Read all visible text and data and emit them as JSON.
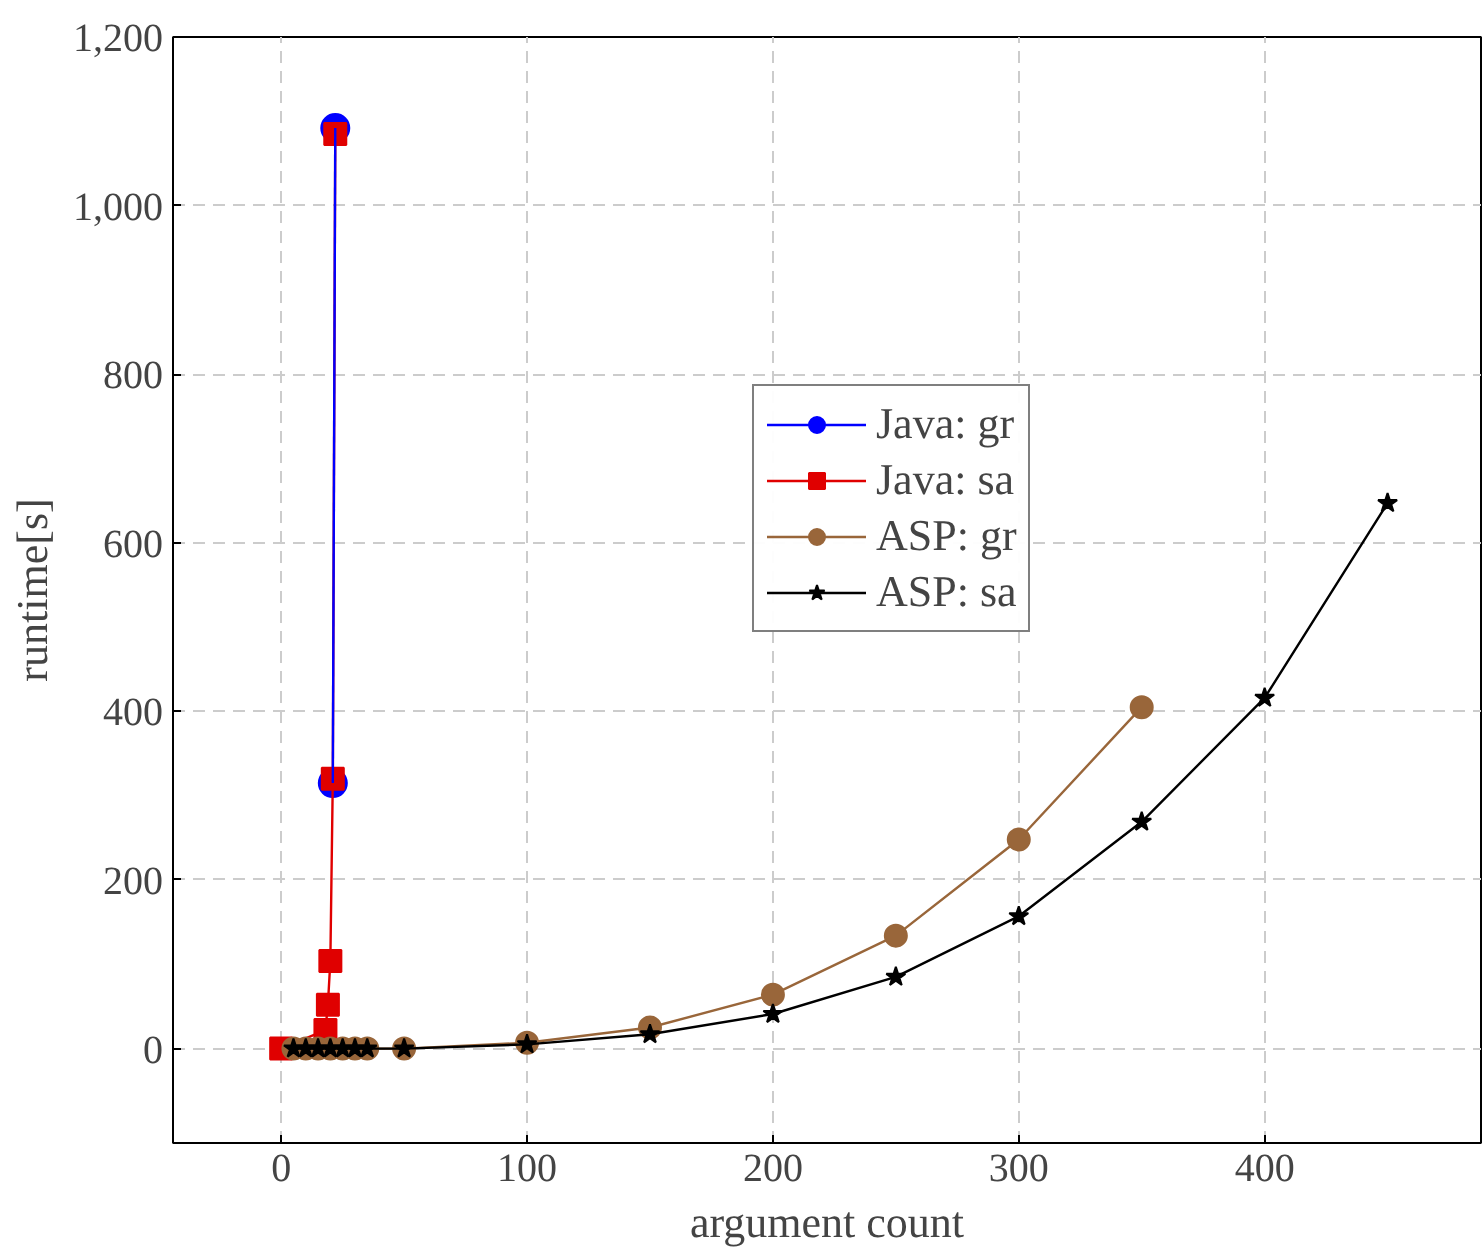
{
  "chart_data": {
    "type": "line",
    "xlabel": "argument count",
    "ylabel": "runtime[s]",
    "xlim": [
      -44,
      488
    ],
    "ylim": [
      -112,
      1200
    ],
    "xticks": [
      0,
      100,
      200,
      300,
      400
    ],
    "yticks": [
      0,
      200,
      400,
      600,
      800,
      {
        "value": 1000,
        "label": "1,000"
      },
      {
        "value": 1200,
        "label": "1,200"
      }
    ],
    "grid": true,
    "legend": "top right",
    "line_style": "solid",
    "series": [
      {
        "name": "Java: gr",
        "color": "#0000ff",
        "marker": "circle",
        "x": [
          21,
          22
        ],
        "values": [
          315,
          1092
        ]
      },
      {
        "name": "Java: sa",
        "color": "#e00000",
        "marker": "square",
        "x": [
          0,
          18,
          19,
          20,
          21,
          22
        ],
        "values": [
          0,
          22,
          52,
          104,
          320,
          1085
        ]
      },
      {
        "name": "ASP: gr",
        "color": "#99663a",
        "marker": "circle",
        "x": [
          5,
          10,
          15,
          20,
          25,
          30,
          35,
          50,
          100,
          150,
          200,
          250,
          300,
          350
        ],
        "values": [
          0,
          0,
          0,
          0,
          0,
          0,
          0,
          0,
          7,
          25,
          64,
          134,
          248,
          405
        ]
      },
      {
        "name": "ASP: sa",
        "color": "#000000",
        "marker": "star",
        "x": [
          5,
          10,
          15,
          20,
          25,
          30,
          35,
          50,
          100,
          150,
          200,
          250,
          300,
          350,
          400,
          450
        ],
        "values": [
          0,
          0,
          0,
          0,
          0,
          0,
          0,
          0,
          5,
          17,
          41,
          85,
          157,
          269,
          416,
          647
        ]
      }
    ]
  }
}
